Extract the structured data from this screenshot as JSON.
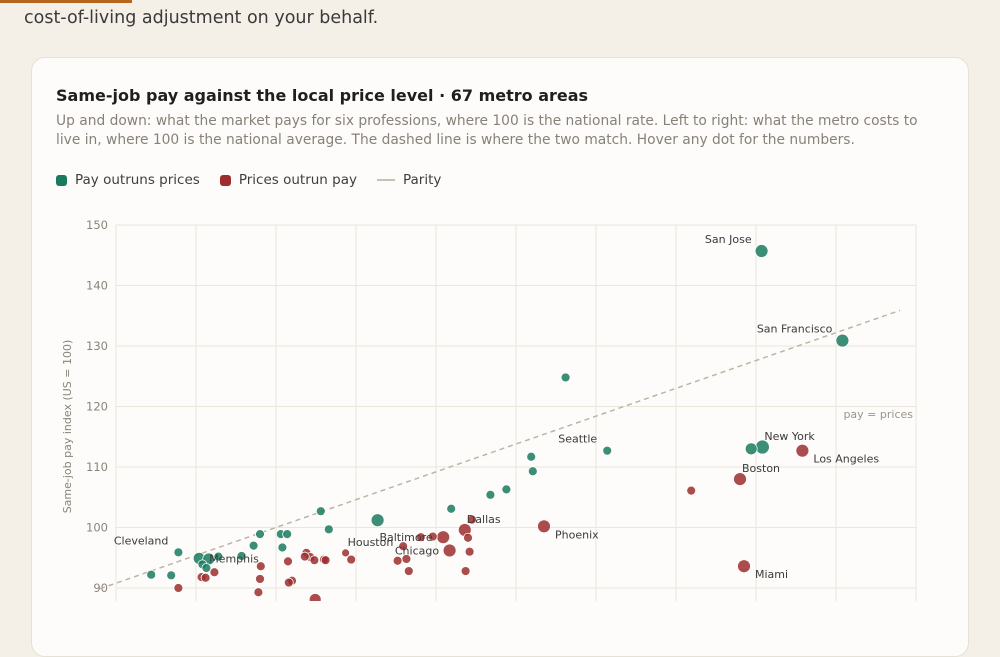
{
  "intro": {
    "text": "cost-of-living adjustment on your behalf."
  },
  "chart_data": {
    "type": "scatter",
    "title": "Same-job pay against the local price level · 67 metro areas",
    "subtitle": "Up and down: what the market pays for six professions, where 100 is the national rate. Left to right: what the metro costs to live in, where 100 is the national average. The dashed line is where the two match. Hover any dot for the numbers.",
    "ylabel": "Same-job pay index (US = 100)",
    "xlabel": "",
    "ylim": [
      90,
      150
    ],
    "y_ticks": [
      90,
      100,
      110,
      120,
      130,
      140,
      150
    ],
    "xlim": [
      80,
      180
    ],
    "legend_placement": "top-left",
    "grid": true,
    "parity_label": "pay = prices",
    "legend": [
      {
        "label": "Pay outruns prices",
        "color": "#1a7a5e"
      },
      {
        "label": "Prices outrun pay",
        "color": "#9e2e2e"
      },
      {
        "label": "Parity",
        "color": "#c8c0b0"
      }
    ],
    "colors": {
      "green": "#1a7a5e",
      "red": "#9e2e2e",
      "parity": "#bdb5a4"
    },
    "points": [
      {
        "name": "San Jose",
        "x": 160.7,
        "y": 145.7,
        "size": 6.5,
        "group": "green",
        "label": "San Jose",
        "label_pos": "above-left"
      },
      {
        "name": "San Francisco",
        "x": 170.8,
        "y": 130.9,
        "size": 6.5,
        "group": "green",
        "label": "San Francisco",
        "label_pos": "above-left"
      },
      {
        "name": "",
        "x": 136.2,
        "y": 124.8,
        "size": 4.5,
        "group": "green"
      },
      {
        "name": "Seattle",
        "x": 141.4,
        "y": 112.7,
        "size": 4.5,
        "group": "green",
        "label": "Seattle",
        "label_pos": "above-left"
      },
      {
        "name": "New York",
        "x": 160.8,
        "y": 113.3,
        "size": 7,
        "group": "green",
        "label": "New York",
        "label_pos": "above-right"
      },
      {
        "name": "",
        "x": 159.4,
        "y": 113.0,
        "size": 6,
        "group": "green"
      },
      {
        "name": "Los Angeles",
        "x": 165.8,
        "y": 112.7,
        "size": 6.5,
        "group": "red",
        "label": "Los Angeles",
        "label_pos": "below-right"
      },
      {
        "name": "Boston",
        "x": 158.0,
        "y": 108.0,
        "size": 6.5,
        "group": "red",
        "label": "Boston",
        "label_pos": "above-right"
      },
      {
        "name": "",
        "x": 131.9,
        "y": 111.7,
        "size": 4.5,
        "group": "green"
      },
      {
        "name": "",
        "x": 132.1,
        "y": 109.3,
        "size": 4.5,
        "group": "green"
      },
      {
        "name": "",
        "x": 128.8,
        "y": 106.3,
        "size": 4.5,
        "group": "green"
      },
      {
        "name": "",
        "x": 151.9,
        "y": 106.1,
        "size": 4.5,
        "group": "red"
      },
      {
        "name": "",
        "x": 126.8,
        "y": 105.4,
        "size": 4.5,
        "group": "green"
      },
      {
        "name": "",
        "x": 121.9,
        "y": 103.1,
        "size": 4.5,
        "group": "green"
      },
      {
        "name": "",
        "x": 124.5,
        "y": 101.3,
        "size": 4.5,
        "group": "red"
      },
      {
        "name": "Dallas",
        "x": 123.6,
        "y": 99.6,
        "size": 6.5,
        "group": "red",
        "label": "Dallas",
        "label_pos": "above-right"
      },
      {
        "name": "Phoenix",
        "x": 133.5,
        "y": 100.2,
        "size": 6.5,
        "group": "red",
        "label": "Phoenix",
        "label_pos": "below-right"
      },
      {
        "name": "",
        "x": 112.7,
        "y": 101.2,
        "size": 6.5,
        "group": "green"
      },
      {
        "name": "Houston",
        "x": 108.7,
        "y": 95.8,
        "size": 4,
        "group": "red",
        "label": "Houston",
        "label_pos": "above-right"
      },
      {
        "name": "Baltimore",
        "x": 120.9,
        "y": 98.4,
        "size": 6.5,
        "group": "red",
        "label": "Baltimore",
        "label_pos": "left"
      },
      {
        "name": "Chicago",
        "x": 121.7,
        "y": 96.2,
        "size": 6.5,
        "group": "red",
        "label": "Chicago",
        "label_pos": "left"
      },
      {
        "name": "",
        "x": 119.6,
        "y": 98.5,
        "size": 4.5,
        "group": "red"
      },
      {
        "name": "",
        "x": 118.1,
        "y": 98.4,
        "size": 4.5,
        "group": "red"
      },
      {
        "name": "",
        "x": 124.0,
        "y": 98.3,
        "size": 4.5,
        "group": "red"
      },
      {
        "name": "",
        "x": 124.2,
        "y": 96.0,
        "size": 4.5,
        "group": "red"
      },
      {
        "name": "",
        "x": 115.9,
        "y": 96.9,
        "size": 4.5,
        "group": "red"
      },
      {
        "name": "",
        "x": 116.3,
        "y": 94.8,
        "size": 4.5,
        "group": "red"
      },
      {
        "name": "",
        "x": 115.2,
        "y": 94.5,
        "size": 4.5,
        "group": "red"
      },
      {
        "name": "",
        "x": 116.6,
        "y": 92.8,
        "size": 4.5,
        "group": "red"
      },
      {
        "name": "",
        "x": 123.7,
        "y": 92.8,
        "size": 4.5,
        "group": "red"
      },
      {
        "name": "",
        "x": 106.6,
        "y": 99.7,
        "size": 4.5,
        "group": "green"
      },
      {
        "name": "",
        "x": 105.6,
        "y": 102.7,
        "size": 4.5,
        "group": "green"
      },
      {
        "name": "",
        "x": 100.6,
        "y": 98.9,
        "size": 4.5,
        "group": "green"
      },
      {
        "name": "",
        "x": 101.4,
        "y": 98.9,
        "size": 4.5,
        "group": "green"
      },
      {
        "name": "",
        "x": 100.8,
        "y": 96.7,
        "size": 4.5,
        "group": "green"
      },
      {
        "name": "",
        "x": 98.0,
        "y": 98.9,
        "size": 4.5,
        "group": "green"
      },
      {
        "name": "",
        "x": 97.2,
        "y": 97.0,
        "size": 4.5,
        "group": "green"
      },
      {
        "name": "",
        "x": 95.7,
        "y": 95.3,
        "size": 4.5,
        "group": "green"
      },
      {
        "name": "",
        "x": 103.8,
        "y": 95.8,
        "size": 4.5,
        "group": "red"
      },
      {
        "name": "",
        "x": 104.3,
        "y": 95.1,
        "size": 4.5,
        "group": "red"
      },
      {
        "name": "",
        "x": 103.6,
        "y": 95.2,
        "size": 4.5,
        "group": "red"
      },
      {
        "name": "",
        "x": 104.8,
        "y": 94.6,
        "size": 4.5,
        "group": "red"
      },
      {
        "name": "",
        "x": 106.0,
        "y": 94.7,
        "size": 4.5,
        "group": "red"
      },
      {
        "name": "",
        "x": 106.2,
        "y": 94.6,
        "size": 4.5,
        "group": "red"
      },
      {
        "name": "",
        "x": 109.4,
        "y": 94.7,
        "size": 4.5,
        "group": "red"
      },
      {
        "name": "",
        "x": 101.5,
        "y": 94.4,
        "size": 4.5,
        "group": "red"
      },
      {
        "name": "",
        "x": 98.1,
        "y": 93.6,
        "size": 4.5,
        "group": "red"
      },
      {
        "name": "",
        "x": 98.0,
        "y": 91.5,
        "size": 4.5,
        "group": "red"
      },
      {
        "name": "",
        "x": 97.8,
        "y": 89.3,
        "size": 4.5,
        "group": "red"
      },
      {
        "name": "",
        "x": 102.0,
        "y": 91.2,
        "size": 4.5,
        "group": "red"
      },
      {
        "name": "",
        "x": 101.6,
        "y": 90.9,
        "size": 4.5,
        "group": "red"
      },
      {
        "name": "",
        "x": 104.9,
        "y": 88.1,
        "size": 6,
        "group": "red"
      },
      {
        "name": "Cleveland",
        "x": 87.8,
        "y": 95.9,
        "size": 4.5,
        "group": "green",
        "label": "Cleveland",
        "label_pos": "above-left"
      },
      {
        "name": "Memphis",
        "x": 90.4,
        "y": 94.9,
        "size": 6,
        "group": "green",
        "label": "Memphis",
        "label_pos": "right"
      },
      {
        "name": "",
        "x": 91.6,
        "y": 94.8,
        "size": 6,
        "group": "green"
      },
      {
        "name": "",
        "x": 92.8,
        "y": 95.2,
        "size": 4.5,
        "group": "green"
      },
      {
        "name": "",
        "x": 90.8,
        "y": 93.9,
        "size": 4.5,
        "group": "green"
      },
      {
        "name": "",
        "x": 91.3,
        "y": 93.3,
        "size": 4.5,
        "group": "green"
      },
      {
        "name": "",
        "x": 84.4,
        "y": 92.2,
        "size": 4.5,
        "group": "green"
      },
      {
        "name": "",
        "x": 86.9,
        "y": 92.1,
        "size": 4.5,
        "group": "green"
      },
      {
        "name": "",
        "x": 90.7,
        "y": 91.8,
        "size": 4.5,
        "group": "red"
      },
      {
        "name": "",
        "x": 91.2,
        "y": 91.7,
        "size": 4.5,
        "group": "red"
      },
      {
        "name": "",
        "x": 92.3,
        "y": 92.6,
        "size": 4.5,
        "group": "red"
      },
      {
        "name": "",
        "x": 87.8,
        "y": 90.0,
        "size": 4.5,
        "group": "red"
      },
      {
        "name": "Miami",
        "x": 158.5,
        "y": 93.6,
        "size": 6.5,
        "group": "red",
        "label": "Miami",
        "label_pos": "below-right"
      }
    ]
  }
}
